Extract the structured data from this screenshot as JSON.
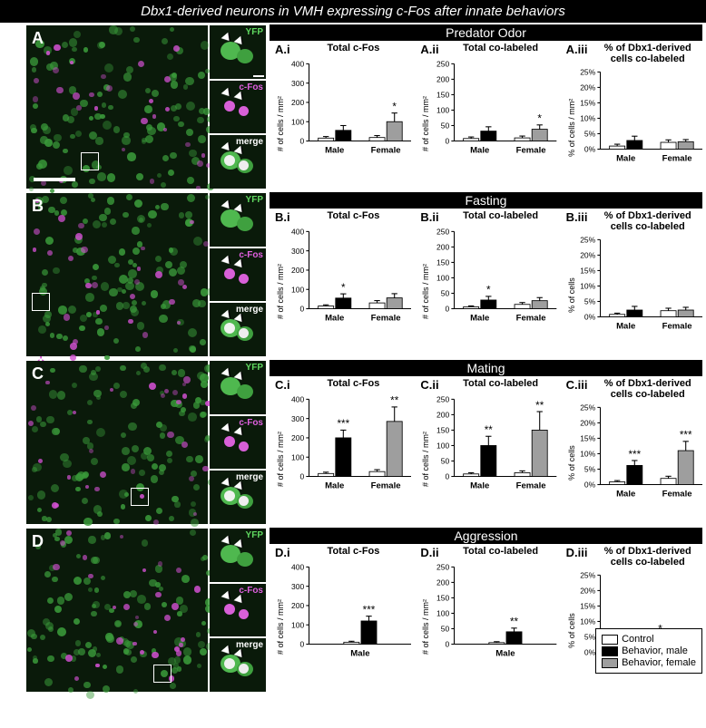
{
  "title": "Dbx1-derived neurons in VMH expressing c-Fos after innate behaviors",
  "side_label_yfp": "YFP",
  "side_label_sep": "/",
  "side_label_cfos": "c-Fos",
  "inset_labels": {
    "yfp": "YFP",
    "cfos": "c-Fos",
    "merge": "merge"
  },
  "legend": {
    "control": "Control",
    "male": "Behavior, male",
    "female": "Behavior, female",
    "colors": {
      "control": "#ffffff",
      "male": "#000000",
      "female": "#9e9e9e"
    }
  },
  "rows": [
    {
      "letter": "A",
      "name": "Predator Odor",
      "box_pos": [
        60,
        140
      ],
      "charts": [
        {
          "id": "A.i",
          "title": "Total c-Fos",
          "ylabel": "# of cells / mm²",
          "ymax": 400,
          "ystep": 100,
          "groups": [
            {
              "label": "Male",
              "bars": [
                {
                  "fill": "control",
                  "val": 15,
                  "err": 8
                },
                {
                  "fill": "male",
                  "val": 55,
                  "err": 25
                }
              ]
            },
            {
              "label": "Female",
              "bars": [
                {
                  "fill": "control",
                  "val": 18,
                  "err": 10
                },
                {
                  "fill": "female",
                  "val": 100,
                  "err": 45,
                  "sig": "*"
                }
              ]
            }
          ]
        },
        {
          "id": "A.ii",
          "title": "Total co-labeled",
          "ylabel": "# of cells / mm²",
          "ymax": 250,
          "ystep": 50,
          "groups": [
            {
              "label": "Male",
              "bars": [
                {
                  "fill": "control",
                  "val": 8,
                  "err": 5
                },
                {
                  "fill": "male",
                  "val": 32,
                  "err": 14
                }
              ]
            },
            {
              "label": "Female",
              "bars": [
                {
                  "fill": "control",
                  "val": 10,
                  "err": 6
                },
                {
                  "fill": "female",
                  "val": 38,
                  "err": 14,
                  "sig": "*"
                }
              ]
            }
          ]
        },
        {
          "id": "A.iii",
          "title": "% of Dbx1-derived cells co-labeled",
          "ylabel": "% of cells / mm²",
          "ymax": 25,
          "ystep": 5,
          "pct": true,
          "groups": [
            {
              "label": "Male",
              "bars": [
                {
                  "fill": "control",
                  "val": 1,
                  "err": 0.6
                },
                {
                  "fill": "male",
                  "val": 2.8,
                  "err": 1.4
                }
              ]
            },
            {
              "label": "Female",
              "bars": [
                {
                  "fill": "control",
                  "val": 2.2,
                  "err": 0.8
                },
                {
                  "fill": "female",
                  "val": 2.4,
                  "err": 0.7
                }
              ]
            }
          ]
        }
      ]
    },
    {
      "letter": "B",
      "name": "Fasting",
      "box_pos": [
        6,
        110
      ],
      "charts": [
        {
          "id": "B.i",
          "title": "Total c-Fos",
          "ylabel": "# of cells / mm²",
          "ymax": 400,
          "ystep": 100,
          "groups": [
            {
              "label": "Male",
              "bars": [
                {
                  "fill": "control",
                  "val": 14,
                  "err": 6
                },
                {
                  "fill": "male",
                  "val": 55,
                  "err": 22,
                  "sig": "*"
                }
              ]
            },
            {
              "label": "Female",
              "bars": [
                {
                  "fill": "control",
                  "val": 30,
                  "err": 12
                },
                {
                  "fill": "female",
                  "val": 56,
                  "err": 22
                }
              ]
            }
          ]
        },
        {
          "id": "B.ii",
          "title": "Total co-labeled",
          "ylabel": "# of cells / mm²",
          "ymax": 250,
          "ystep": 50,
          "groups": [
            {
              "label": "Male",
              "bars": [
                {
                  "fill": "control",
                  "val": 6,
                  "err": 3
                },
                {
                  "fill": "male",
                  "val": 28,
                  "err": 12,
                  "sig": "*"
                }
              ]
            },
            {
              "label": "Female",
              "bars": [
                {
                  "fill": "control",
                  "val": 14,
                  "err": 6
                },
                {
                  "fill": "female",
                  "val": 26,
                  "err": 10
                }
              ]
            }
          ]
        },
        {
          "id": "B.iii",
          "title": "% of Dbx1-derived cells co-labeled",
          "ylabel": "% of cells",
          "ymax": 25,
          "ystep": 5,
          "pct": true,
          "groups": [
            {
              "label": "Male",
              "bars": [
                {
                  "fill": "control",
                  "val": 0.8,
                  "err": 0.4
                },
                {
                  "fill": "male",
                  "val": 2.2,
                  "err": 1.2
                }
              ]
            },
            {
              "label": "Female",
              "bars": [
                {
                  "fill": "control",
                  "val": 2,
                  "err": 0.8
                },
                {
                  "fill": "female",
                  "val": 2.2,
                  "err": 0.9
                }
              ]
            }
          ]
        }
      ]
    },
    {
      "letter": "C",
      "name": "Mating",
      "box_pos": [
        115,
        140
      ],
      "charts": [
        {
          "id": "C.i",
          "title": "Total c-Fos",
          "ylabel": "# of cells / mm²",
          "ymax": 400,
          "ystep": 100,
          "groups": [
            {
              "label": "Male",
              "bars": [
                {
                  "fill": "control",
                  "val": 15,
                  "err": 7
                },
                {
                  "fill": "male",
                  "val": 200,
                  "err": 40,
                  "sig": "***"
                }
              ]
            },
            {
              "label": "Female",
              "bars": [
                {
                  "fill": "control",
                  "val": 25,
                  "err": 10
                },
                {
                  "fill": "female",
                  "val": 285,
                  "err": 75,
                  "sig": "**"
                }
              ]
            }
          ]
        },
        {
          "id": "C.ii",
          "title": "Total co-labeled",
          "ylabel": "# of cells / mm²",
          "ymax": 250,
          "ystep": 50,
          "groups": [
            {
              "label": "Male",
              "bars": [
                {
                  "fill": "control",
                  "val": 8,
                  "err": 4
                },
                {
                  "fill": "male",
                  "val": 100,
                  "err": 30,
                  "sig": "**"
                }
              ]
            },
            {
              "label": "Female",
              "bars": [
                {
                  "fill": "control",
                  "val": 12,
                  "err": 6
                },
                {
                  "fill": "female",
                  "val": 150,
                  "err": 60,
                  "sig": "**"
                }
              ]
            }
          ]
        },
        {
          "id": "C.iii",
          "title": "% of Dbx1-derived cells co-labeled",
          "ylabel": "% of cells",
          "ymax": 25,
          "ystep": 5,
          "pct": true,
          "groups": [
            {
              "label": "Male",
              "bars": [
                {
                  "fill": "control",
                  "val": 0.9,
                  "err": 0.4
                },
                {
                  "fill": "male",
                  "val": 6.2,
                  "err": 1.6,
                  "sig": "***"
                }
              ]
            },
            {
              "label": "Female",
              "bars": [
                {
                  "fill": "control",
                  "val": 2,
                  "err": 0.7
                },
                {
                  "fill": "female",
                  "val": 11,
                  "err": 3,
                  "sig": "***"
                }
              ]
            }
          ]
        }
      ]
    },
    {
      "letter": "D",
      "name": "Aggression",
      "box_pos": [
        140,
        150
      ],
      "charts": [
        {
          "id": "D.i",
          "title": "Total c-Fos",
          "ylabel": "# of cells / mm²",
          "ymax": 400,
          "ystep": 100,
          "groups": [
            {
              "label": "Male",
              "bars": [
                {
                  "fill": "control",
                  "val": 10,
                  "err": 5
                },
                {
                  "fill": "male",
                  "val": 120,
                  "err": 25,
                  "sig": "***"
                }
              ]
            }
          ]
        },
        {
          "id": "D.ii",
          "title": "Total co-labeled",
          "ylabel": "# of cells / mm²",
          "ymax": 250,
          "ystep": 50,
          "groups": [
            {
              "label": "Male",
              "bars": [
                {
                  "fill": "control",
                  "val": 5,
                  "err": 3
                },
                {
                  "fill": "male",
                  "val": 40,
                  "err": 12,
                  "sig": "**"
                }
              ]
            }
          ]
        },
        {
          "id": "D.iii",
          "title": "% of Dbx1-derived cells co-labeled",
          "ylabel": "% of cells",
          "ymax": 25,
          "ystep": 5,
          "pct": true,
          "groups": [
            {
              "label": "Male",
              "bars": [
                {
                  "fill": "control",
                  "val": 0.7,
                  "err": 0.3
                },
                {
                  "fill": "male",
                  "val": 4,
                  "err": 1.5,
                  "sig": "*"
                }
              ]
            }
          ]
        }
      ]
    }
  ]
}
